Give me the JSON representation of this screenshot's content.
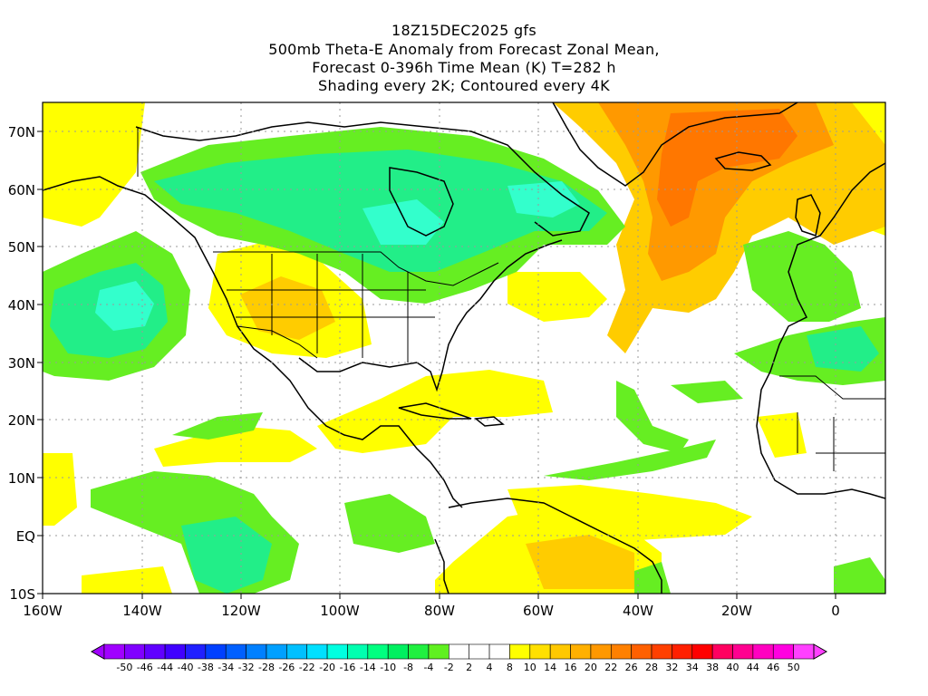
{
  "titles": {
    "line1": "18Z15DEC2025 gfs",
    "line2": "500mb Theta-E Anomaly from Forecast Zonal Mean,",
    "line3": "Forecast 0-396h Time Mean (K) T=282 h",
    "line4": "Shading every 2K; Contoured every 4K"
  },
  "map": {
    "lon_range": [
      -160,
      10
    ],
    "lat_range": [
      -10,
      75
    ],
    "gridlines": true,
    "lon_ticks": [
      "160W",
      "140W",
      "120W",
      "100W",
      "80W",
      "60W",
      "40W",
      "20W",
      "0"
    ],
    "lat_ticks": [
      "70N",
      "60N",
      "50N",
      "40N",
      "30N",
      "20N",
      "10N",
      "EQ",
      "10S"
    ]
  },
  "colorbar": {
    "labels": [
      "-50",
      "-46",
      "-44",
      "-40",
      "-38",
      "-34",
      "-32",
      "-28",
      "-26",
      "-22",
      "-20",
      "-16",
      "-14",
      "-10",
      "-8",
      "-4",
      "-2",
      "2",
      "4",
      "8",
      "10",
      "14",
      "16",
      "20",
      "22",
      "26",
      "28",
      "32",
      "34",
      "38",
      "40",
      "44",
      "46",
      "50"
    ],
    "colors": [
      "#a000ff",
      "#8000ff",
      "#6000ff",
      "#4000ff",
      "#2020ff",
      "#0040ff",
      "#0060ff",
      "#0080ff",
      "#00a0ff",
      "#00c0ff",
      "#00e0ff",
      "#00ffe0",
      "#00ffb0",
      "#00ff80",
      "#00f060",
      "#20f040",
      "#60f020",
      "#ffffff",
      "#ffffff",
      "#ffffff",
      "#ffff00",
      "#ffe000",
      "#ffc800",
      "#ffb000",
      "#ff9800",
      "#ff8000",
      "#ff6000",
      "#ff4000",
      "#ff2000",
      "#ff0000",
      "#ff0060",
      "#ff0090",
      "#ff00c0",
      "#ff00e0",
      "#ff40ff"
    ]
  },
  "colors": {
    "strong_positive": "#f08a00",
    "moderate_positive": "#ffcc00",
    "weak_positive": "#ffff00",
    "weak_negative": "#66ee22",
    "moderate_negative": "#22ee88",
    "strong_negative": "#33ffcc"
  }
}
